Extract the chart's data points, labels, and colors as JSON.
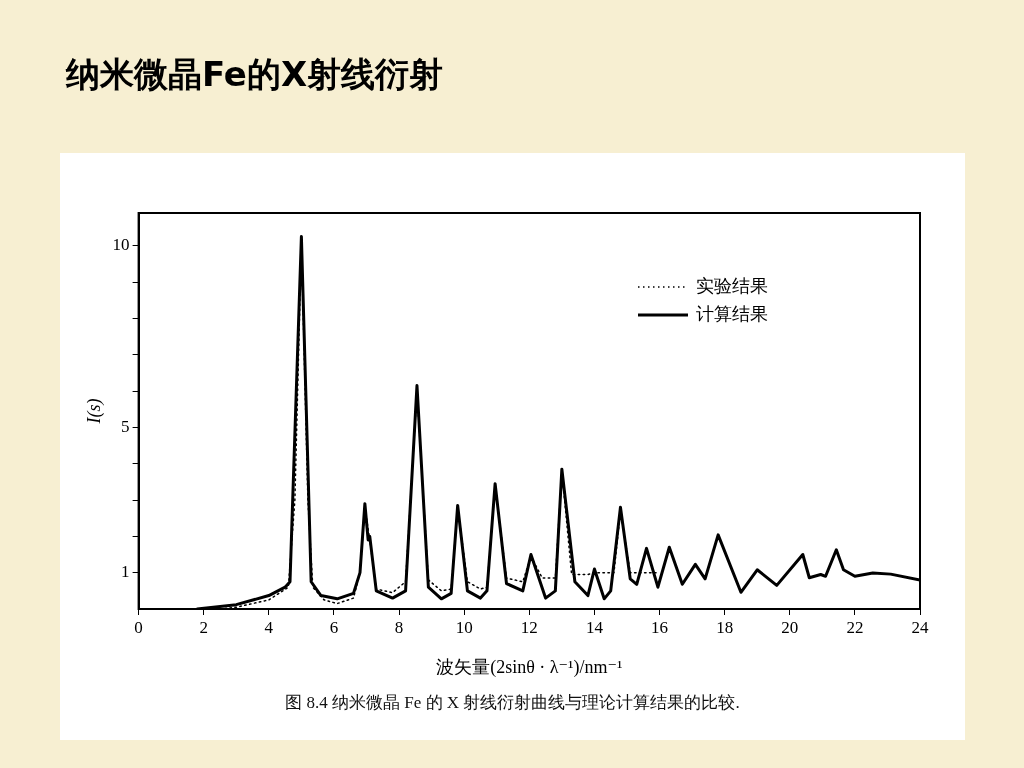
{
  "chart_data": {
    "type": "line",
    "title": "纳米微晶Fe的X射线衍射",
    "xlabel": "波矢量(2sinθ · λ⁻¹)/nm⁻¹",
    "ylabel": "I(s)",
    "annotations": [
      "图 8.4   纳米微晶 Fe 的 X 射线衍射曲线与理论计算结果的比较."
    ],
    "xlim": [
      0,
      24
    ],
    "xticks": [
      0,
      2,
      4,
      6,
      8,
      10,
      12,
      14,
      16,
      18,
      20,
      22,
      24
    ],
    "ylim": [
      0,
      10.9
    ],
    "yticks": [
      {
        "value": 1,
        "label": "1"
      },
      {
        "value": 2,
        "label": null
      },
      {
        "value": 3,
        "label": null
      },
      {
        "value": 4,
        "label": null
      },
      {
        "value": 5,
        "label": "5"
      },
      {
        "value": 6,
        "label": null
      },
      {
        "value": 7,
        "label": null
      },
      {
        "value": 8,
        "label": null
      },
      {
        "value": 9,
        "label": null
      },
      {
        "value": 10,
        "label": "10"
      }
    ],
    "grid": false,
    "legend": "top right",
    "marker": "none",
    "series": [
      {
        "name": "实验结果",
        "color": "#000000",
        "line_style": "dotted",
        "x": [
          2.5,
          3,
          4,
          4.6,
          4.8,
          5.0,
          5.2,
          5.35,
          5.7,
          6.1,
          6.6,
          6.8,
          6.95,
          7.1,
          7.3,
          7.8,
          8.2,
          8.55,
          8.9,
          9.3,
          9.6,
          9.8,
          10.1,
          10.5,
          10.7,
          10.95,
          11.3,
          11.8,
          12.05,
          12.4,
          12.8,
          13.0,
          13.3,
          13.8,
          14.0,
          14.3,
          14.6,
          14.8,
          15.1,
          15.6,
          16.0
        ],
        "values": [
          0,
          0.05,
          0.25,
          0.6,
          3,
          10.1,
          3,
          0.6,
          0.25,
          0.15,
          0.3,
          1,
          2.8,
          1.9,
          0.55,
          0.45,
          0.75,
          6.0,
          0.8,
          0.5,
          0.55,
          2.8,
          0.75,
          0.55,
          0.6,
          3.4,
          0.85,
          0.75,
          1.45,
          0.85,
          0.85,
          3.8,
          0.95,
          0.95,
          1.0,
          1.0,
          1.0,
          2.7,
          1.0,
          1.0,
          1.0
        ]
      },
      {
        "name": "计算结果",
        "color": "#000000",
        "line_style": "solid",
        "x": [
          1.8,
          3,
          4,
          4.5,
          4.65,
          5.0,
          5.3,
          5.6,
          6.1,
          6.6,
          6.8,
          6.95,
          7.05,
          7.1,
          7.3,
          7.8,
          8.2,
          8.55,
          8.9,
          9.3,
          9.6,
          9.8,
          10.1,
          10.5,
          10.7,
          10.95,
          11.3,
          11.8,
          12.05,
          12.5,
          12.8,
          13.0,
          13.4,
          13.8,
          14.0,
          14.3,
          14.5,
          14.8,
          15.1,
          15.3,
          15.6,
          15.95,
          16.3,
          16.7,
          17.1,
          17.4,
          17.8,
          18.5,
          19.0,
          19.6,
          20.4,
          20.6,
          20.95,
          21.1,
          21.43,
          21.65,
          22.0,
          22.55,
          23.1,
          24
        ],
        "values": [
          0,
          0.12,
          0.37,
          0.6,
          0.75,
          10.25,
          0.75,
          0.37,
          0.28,
          0.43,
          1,
          2.9,
          1.9,
          2.0,
          0.5,
          0.3,
          0.5,
          6.15,
          0.6,
          0.28,
          0.43,
          2.85,
          0.5,
          0.3,
          0.5,
          3.45,
          0.7,
          0.5,
          1.5,
          0.3,
          0.5,
          3.85,
          0.75,
          0.37,
          1.1,
          0.28,
          0.5,
          2.8,
          0.83,
          0.68,
          1.67,
          0.6,
          1.7,
          0.68,
          1.23,
          0.83,
          2.04,
          0.46,
          1.08,
          0.65,
          1.5,
          0.86,
          0.95,
          0.9,
          1.63,
          1.08,
          0.9,
          0.99,
          0.96,
          0.8
        ]
      }
    ]
  }
}
